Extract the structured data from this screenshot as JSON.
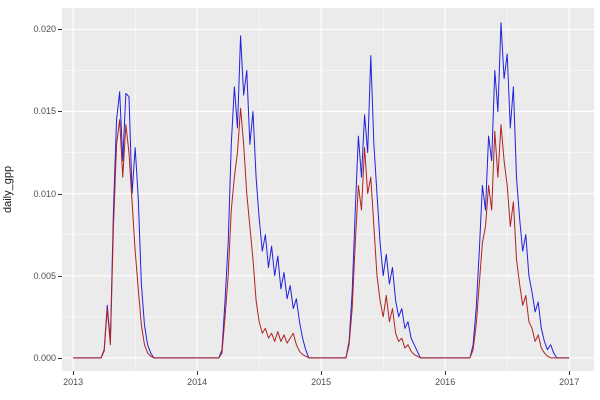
{
  "figure": {
    "background": "#FFFFFF",
    "panel_background": "#EBEBEB",
    "grid_major_color": "#FFFFFF",
    "grid_minor_color": "#FFFFFF"
  },
  "chart_data": {
    "type": "line",
    "title": "",
    "xlabel": "",
    "ylabel": "daily_gpp",
    "grid": true,
    "legend": "none",
    "x_axis": {
      "ticks": [
        2013,
        2014,
        2015,
        2016,
        2017
      ],
      "tick_labels": [
        "2013",
        "2014",
        "2015",
        "2016",
        "2017"
      ],
      "minor_ticks": [
        2013.5,
        2014.5,
        2015.5,
        2016.5
      ],
      "range": [
        2012.91,
        2017.2
      ]
    },
    "y_axis": {
      "ticks": [
        0,
        0.005,
        0.01,
        0.015,
        0.02
      ],
      "tick_labels": [
        "0.000",
        "0.005",
        "0.010",
        "0.015",
        "0.020"
      ],
      "minor_ticks": [
        0.0025,
        0.0075,
        0.0125,
        0.0175
      ],
      "range": [
        -0.0008,
        0.0213
      ]
    },
    "x_encoding": {
      "start": 2013.0,
      "step": 0.025,
      "n": 161,
      "unit": "year"
    },
    "series": [
      {
        "name": "blue-series",
        "color": "#2222DD",
        "values": [
          0,
          0,
          0,
          0,
          0,
          0,
          0,
          0,
          0,
          0,
          0.0005,
          0.0032,
          0.001,
          0.009,
          0.0145,
          0.0162,
          0.012,
          0.0161,
          0.0159,
          0.01,
          0.0128,
          0.0097,
          0.0045,
          0.002,
          0.0008,
          0.0003,
          0,
          0,
          0,
          0,
          0,
          0,
          0,
          0,
          0,
          0,
          0,
          0,
          0,
          0,
          0,
          0,
          0,
          0,
          0,
          0,
          0,
          0,
          0.0005,
          0.0035,
          0.007,
          0.013,
          0.0165,
          0.014,
          0.0196,
          0.016,
          0.0175,
          0.013,
          0.015,
          0.011,
          0.0085,
          0.0065,
          0.0075,
          0.0055,
          0.0068,
          0.005,
          0.0062,
          0.0042,
          0.0052,
          0.0036,
          0.0044,
          0.003,
          0.0036,
          0.0022,
          0.0012,
          0.0005,
          0,
          0,
          0,
          0,
          0,
          0,
          0,
          0,
          0,
          0,
          0,
          0,
          0,
          0.001,
          0.004,
          0.009,
          0.0135,
          0.011,
          0.0148,
          0.0125,
          0.0184,
          0.013,
          0.01,
          0.007,
          0.005,
          0.0063,
          0.0045,
          0.0055,
          0.0035,
          0.0025,
          0.003,
          0.0018,
          0.0022,
          0.0012,
          0.0008,
          0.0004,
          0,
          0,
          0,
          0,
          0,
          0,
          0,
          0,
          0,
          0,
          0,
          0,
          0,
          0,
          0,
          0,
          0,
          0.0008,
          0.003,
          0.0065,
          0.0105,
          0.009,
          0.0135,
          0.012,
          0.0175,
          0.015,
          0.0204,
          0.017,
          0.0185,
          0.014,
          0.0165,
          0.011,
          0.0085,
          0.0065,
          0.0075,
          0.005,
          0.004,
          0.0028,
          0.0034,
          0.0018,
          0.001,
          0.0005,
          0.0008,
          0.0003,
          0,
          0,
          0,
          0,
          0
        ]
      },
      {
        "name": "red-series",
        "color": "#B22222",
        "values": [
          0,
          0,
          0,
          0,
          0,
          0,
          0,
          0,
          0,
          0,
          0.0004,
          0.003,
          0.0008,
          0.008,
          0.013,
          0.0145,
          0.011,
          0.0142,
          0.0125,
          0.0095,
          0.0065,
          0.0042,
          0.002,
          0.0008,
          0.0003,
          0.0001,
          0,
          0,
          0,
          0,
          0,
          0,
          0,
          0,
          0,
          0,
          0,
          0,
          0,
          0,
          0,
          0,
          0,
          0,
          0,
          0,
          0,
          0,
          0.0003,
          0.0025,
          0.005,
          0.009,
          0.011,
          0.0125,
          0.0152,
          0.013,
          0.01,
          0.008,
          0.006,
          0.0035,
          0.0022,
          0.0015,
          0.0018,
          0.0012,
          0.0015,
          0.001,
          0.0016,
          0.001,
          0.0014,
          0.0009,
          0.0012,
          0.0015,
          0.0008,
          0.0004,
          0.0002,
          0.0001,
          0,
          0,
          0,
          0,
          0,
          0,
          0,
          0,
          0,
          0,
          0,
          0,
          0,
          0.0008,
          0.003,
          0.007,
          0.0105,
          0.009,
          0.0128,
          0.01,
          0.011,
          0.008,
          0.005,
          0.0035,
          0.0025,
          0.0038,
          0.0022,
          0.003,
          0.0015,
          0.001,
          0.0012,
          0.0006,
          0.0008,
          0.0004,
          0.0002,
          0.0001,
          0,
          0,
          0,
          0,
          0,
          0,
          0,
          0,
          0,
          0,
          0,
          0,
          0,
          0,
          0,
          0,
          0,
          0.0005,
          0.002,
          0.0045,
          0.007,
          0.008,
          0.0105,
          0.009,
          0.0138,
          0.011,
          0.0142,
          0.012,
          0.0105,
          0.008,
          0.0095,
          0.006,
          0.0045,
          0.0032,
          0.0038,
          0.0022,
          0.0018,
          0.001,
          0.0014,
          0.0006,
          0.0003,
          0.0001,
          0,
          0,
          0,
          0,
          0,
          0,
          0
        ]
      }
    ]
  }
}
